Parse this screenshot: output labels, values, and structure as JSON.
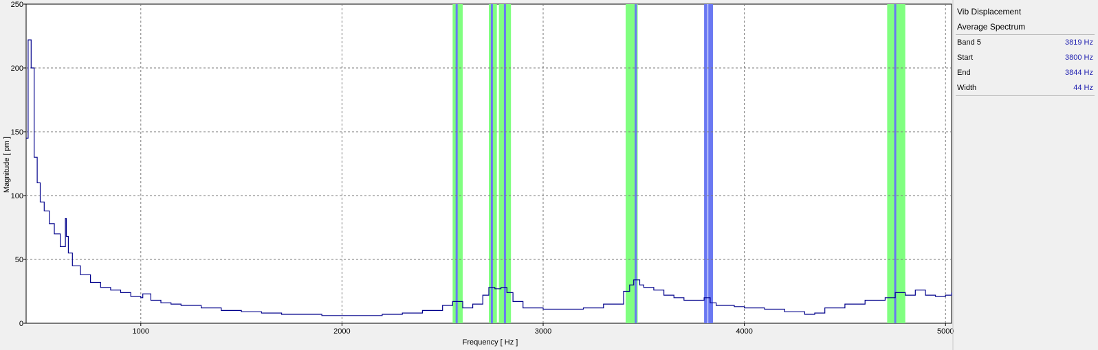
{
  "panel": {
    "signal": "Vib Displacement",
    "view": "Average Spectrum",
    "rows": [
      {
        "label": "Band 5",
        "value": "3819 Hz"
      },
      {
        "label": "Start",
        "value": "3800 Hz"
      },
      {
        "label": "End",
        "value": "3844 Hz"
      },
      {
        "label": "Width",
        "value": "44 Hz"
      }
    ]
  },
  "colors": {
    "trace": "#00008b",
    "band_fill": "#80ff80",
    "band_center": "#6a78f2",
    "selected_band": "#6a78f2",
    "grid": "#7a7a7a"
  },
  "chart_data": {
    "type": "line",
    "xlabel": "Frequency [ Hz ]",
    "ylabel": "Magnitude [ pm ]",
    "xlim": [
      430,
      5030
    ],
    "ylim": [
      0,
      250
    ],
    "xticks": [
      1000,
      2000,
      3000,
      4000,
      5000
    ],
    "yticks": [
      0,
      50,
      100,
      150,
      200,
      250
    ],
    "grid": true,
    "legend": "none",
    "series": [
      {
        "x": [
          430,
          440,
          455,
          470,
          485,
          500,
          520,
          545,
          570,
          600,
          625,
          630,
          640,
          660,
          700,
          750,
          800,
          850,
          900,
          950,
          1000,
          1010,
          1050,
          1100,
          1150,
          1200,
          1300,
          1400,
          1500,
          1600,
          1700,
          1800,
          1900,
          2000,
          2100,
          2200,
          2300,
          2400,
          2500,
          2550,
          2600,
          2650,
          2700,
          2730,
          2760,
          2790,
          2820,
          2850,
          2900,
          3000,
          3100,
          3200,
          3300,
          3400,
          3430,
          3450,
          3480,
          3500,
          3550,
          3600,
          3650,
          3700,
          3750,
          3800,
          3830,
          3860,
          3900,
          3950,
          4000,
          4100,
          4200,
          4300,
          4350,
          4400,
          4500,
          4600,
          4700,
          4750,
          4800,
          4850,
          4900,
          4950,
          5000,
          5030
        ],
        "y": [
          145,
          222,
          200,
          130,
          110,
          95,
          88,
          78,
          70,
          60,
          82,
          68,
          55,
          45,
          38,
          32,
          28,
          26,
          24,
          21,
          20,
          23,
          18,
          16,
          15,
          14,
          12,
          10,
          9,
          8,
          7,
          7,
          6,
          6,
          6,
          7,
          8,
          10,
          14,
          17,
          12,
          15,
          22,
          28,
          27,
          28,
          24,
          17,
          12,
          11,
          11,
          12,
          15,
          25,
          30,
          34,
          30,
          28,
          26,
          22,
          20,
          18,
          18,
          20,
          16,
          14,
          14,
          13,
          12,
          11,
          9,
          7,
          8,
          12,
          15,
          18,
          20,
          24,
          22,
          26,
          22,
          21,
          22,
          24
        ]
      }
    ],
    "bands": [
      {
        "start": 2550,
        "end": 2600,
        "center": 2570
      },
      {
        "start": 2730,
        "end": 2770,
        "center": 2745
      },
      {
        "start": 2780,
        "end": 2840,
        "center": 2810
      },
      {
        "start": 3410,
        "end": 3470,
        "center": 3460
      },
      {
        "start": 3800,
        "end": 3844,
        "center": 3819,
        "selected": true
      },
      {
        "start": 4710,
        "end": 4800,
        "center": 4750
      }
    ]
  }
}
